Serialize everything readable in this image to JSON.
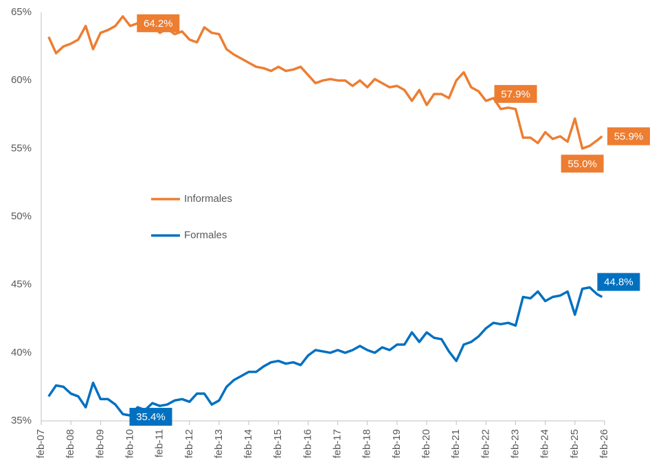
{
  "chart_data": {
    "type": "line",
    "x": [
      "2007-05",
      "2007-08",
      "2007-11",
      "2008-02",
      "2008-05",
      "2008-08",
      "2008-11",
      "2009-02",
      "2009-05",
      "2009-08",
      "2009-11",
      "2010-02",
      "2010-05",
      "2010-08",
      "2010-11",
      "2011-02",
      "2011-05",
      "2011-08",
      "2011-11",
      "2012-02",
      "2012-05",
      "2012-08",
      "2012-11",
      "2013-02",
      "2013-05",
      "2013-08",
      "2013-11",
      "2014-02",
      "2014-05",
      "2014-08",
      "2014-11",
      "2015-02",
      "2015-05",
      "2015-08",
      "2015-11",
      "2016-02",
      "2016-05",
      "2016-08",
      "2016-11",
      "2017-02",
      "2017-05",
      "2017-08",
      "2017-11",
      "2018-02",
      "2018-05",
      "2018-08",
      "2018-11",
      "2019-02",
      "2019-05",
      "2019-08",
      "2019-11",
      "2020-02",
      "2020-05",
      "2020-08",
      "2020-11",
      "2021-02",
      "2021-05",
      "2021-08",
      "2021-11",
      "2022-02",
      "2022-05",
      "2022-08",
      "2022-11",
      "2023-02",
      "2023-05",
      "2023-08",
      "2023-11",
      "2024-02",
      "2024-05",
      "2024-08",
      "2024-11",
      "2025-02",
      "2025-05",
      "2025-08",
      "2025-11",
      "2026-01"
    ],
    "series": [
      {
        "name": "Informales",
        "color": "#ED7D31",
        "values": [
          63.2,
          62.0,
          62.5,
          62.7,
          63.0,
          64.0,
          62.3,
          63.5,
          63.7,
          64.0,
          64.7,
          64.0,
          64.2,
          63.8,
          64.0,
          63.5,
          63.8,
          63.4,
          63.6,
          63.0,
          62.8,
          63.9,
          63.5,
          63.4,
          62.3,
          61.9,
          61.6,
          61.3,
          61.0,
          60.9,
          60.7,
          61.0,
          60.7,
          60.8,
          61.0,
          60.4,
          59.8,
          60.0,
          60.1,
          60.0,
          60.0,
          59.6,
          60.0,
          59.5,
          60.1,
          59.8,
          59.5,
          59.6,
          59.3,
          58.5,
          59.3,
          58.2,
          59.0,
          59.0,
          58.7,
          60.0,
          60.6,
          59.5,
          59.2,
          58.5,
          58.7,
          57.9,
          58.0,
          57.9,
          55.8,
          55.8,
          55.4,
          56.2,
          55.7,
          55.9,
          55.5,
          57.2,
          55.0,
          55.2,
          55.6,
          55.9
        ]
      },
      {
        "name": "Formales",
        "color": "#0070C0",
        "values": [
          36.8,
          37.6,
          37.5,
          37.0,
          36.8,
          36.0,
          37.8,
          36.6,
          36.6,
          36.2,
          35.5,
          35.4,
          36.0,
          35.8,
          36.3,
          36.1,
          36.2,
          36.5,
          36.6,
          36.4,
          37.0,
          37.0,
          36.2,
          36.5,
          37.5,
          38.0,
          38.3,
          38.6,
          38.6,
          39.0,
          39.3,
          39.4,
          39.2,
          39.3,
          39.1,
          39.8,
          40.2,
          40.1,
          40.0,
          40.2,
          40.0,
          40.2,
          40.5,
          40.2,
          40.0,
          40.4,
          40.2,
          40.6,
          40.6,
          41.5,
          40.8,
          41.5,
          41.1,
          41.0,
          40.1,
          39.4,
          40.6,
          40.8,
          41.2,
          41.8,
          42.2,
          42.1,
          42.2,
          42.0,
          44.1,
          44.0,
          44.5,
          43.8,
          44.1,
          44.2,
          44.5,
          42.8,
          44.7,
          44.8,
          44.3,
          44.1
        ]
      }
    ],
    "annotations": [
      {
        "label": "64.2%",
        "x": "2010-05",
        "y": 64.2,
        "color": "#ED7D31"
      },
      {
        "label": "57.9%",
        "x": "2023-02",
        "y": 57.9,
        "color": "#ED7D31"
      },
      {
        "label": "55.0%",
        "x": "2025-05",
        "y": 55.0,
        "color": "#ED7D31"
      },
      {
        "label": "55.9%",
        "x": "2026-01",
        "y": 55.9,
        "color": "#ED7D31"
      },
      {
        "label": "35.4%",
        "x": "2010-02",
        "y": 35.4,
        "color": "#0070C0"
      },
      {
        "label": "44.8%",
        "x": "2025-08",
        "y": 44.8,
        "color": "#0070C0"
      }
    ],
    "xlim": [
      "2007-02",
      "2026-02"
    ],
    "xticks": [
      {
        "value": "2007-02",
        "label": "feb-07"
      },
      {
        "value": "2008-02",
        "label": "feb-08"
      },
      {
        "value": "2009-02",
        "label": "feb-09"
      },
      {
        "value": "2010-02",
        "label": "feb-10"
      },
      {
        "value": "2011-02",
        "label": "feb-11"
      },
      {
        "value": "2012-02",
        "label": "feb-12"
      },
      {
        "value": "2013-02",
        "label": "feb-13"
      },
      {
        "value": "2014-02",
        "label": "feb-14"
      },
      {
        "value": "2015-02",
        "label": "feb-15"
      },
      {
        "value": "2016-02",
        "label": "feb-16"
      },
      {
        "value": "2017-02",
        "label": "feb-17"
      },
      {
        "value": "2018-02",
        "label": "feb-18"
      },
      {
        "value": "2019-02",
        "label": "feb-19"
      },
      {
        "value": "2020-02",
        "label": "feb-20"
      },
      {
        "value": "2021-02",
        "label": "feb-21"
      },
      {
        "value": "2022-02",
        "label": "feb-22"
      },
      {
        "value": "2023-02",
        "label": "feb-23"
      },
      {
        "value": "2024-02",
        "label": "feb-24"
      },
      {
        "value": "2025-02",
        "label": "feb-25"
      },
      {
        "value": "2026-02",
        "label": "feb-26"
      }
    ],
    "ylim": [
      35,
      65
    ],
    "yticks": [
      {
        "value": 35,
        "label": "35%"
      },
      {
        "value": 40,
        "label": "40%"
      },
      {
        "value": 45,
        "label": "45%"
      },
      {
        "value": 50,
        "label": "50%"
      },
      {
        "value": 55,
        "label": "55%"
      },
      {
        "value": 60,
        "label": "60%"
      },
      {
        "value": 65,
        "label": "65%"
      }
    ],
    "grid": false,
    "legend": "left"
  }
}
